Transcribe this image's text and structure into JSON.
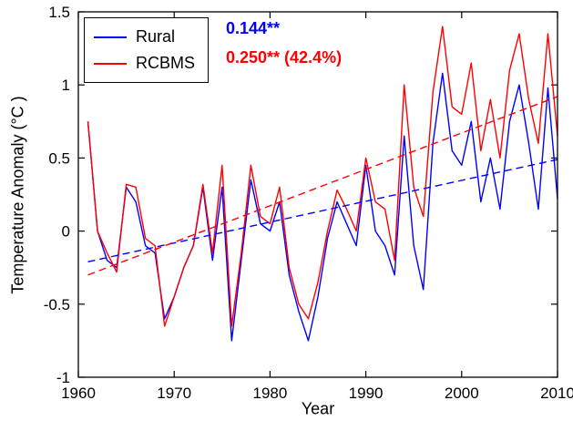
{
  "figure": {
    "background": "#ffffff",
    "xlabel": "Year",
    "ylabel": "Temperature Anomaly (°C )"
  },
  "legend": {
    "position": "top-left",
    "entries": [
      {
        "label": "Rural",
        "color": "#0000ff",
        "style": "solid"
      },
      {
        "label": "RCBMS",
        "color": "#ff0000",
        "style": "solid"
      }
    ]
  },
  "annotations": [
    {
      "text": "0.144**",
      "color": "#0000ff"
    },
    {
      "text": "0.250** (42.4%)",
      "color": "#ff0000"
    }
  ],
  "chart_data": {
    "type": "line",
    "title": "",
    "xlabel": "Year",
    "ylabel": "Temperature Anomaly (°C )",
    "xlim": [
      1960,
      2010
    ],
    "ylim": [
      -1,
      1.5
    ],
    "xticks": [
      1960,
      1970,
      1980,
      1990,
      2000,
      2010
    ],
    "yticks": [
      -1,
      -0.5,
      0,
      0.5,
      1,
      1.5
    ],
    "ytick_labels": [
      "-1",
      "-0.5",
      "0",
      "0.5",
      "1",
      "1.5"
    ],
    "grid": false,
    "legend_position": "top-left",
    "x": [
      1961,
      1962,
      1963,
      1964,
      1965,
      1966,
      1967,
      1968,
      1969,
      1970,
      1971,
      1972,
      1973,
      1974,
      1975,
      1976,
      1977,
      1978,
      1979,
      1980,
      1981,
      1982,
      1983,
      1984,
      1985,
      1986,
      1987,
      1988,
      1989,
      1990,
      1991,
      1992,
      1993,
      1994,
      1995,
      1996,
      1997,
      1998,
      1999,
      2000,
      2001,
      2002,
      2003,
      2004,
      2005,
      2006,
      2007,
      2008,
      2009,
      2010
    ],
    "series": [
      {
        "name": "Rural",
        "color": "#0000ff",
        "trend_label": "0.144**",
        "values": [
          0.75,
          0.0,
          -0.2,
          -0.25,
          0.3,
          0.2,
          -0.1,
          -0.15,
          -0.6,
          -0.45,
          -0.25,
          -0.1,
          0.3,
          -0.2,
          0.3,
          -0.75,
          -0.2,
          0.35,
          0.05,
          0.0,
          0.2,
          -0.3,
          -0.55,
          -0.75,
          -0.45,
          -0.05,
          0.2,
          0.05,
          -0.1,
          0.45,
          0.0,
          -0.1,
          -0.3,
          0.65,
          -0.1,
          -0.4,
          0.6,
          1.08,
          0.55,
          0.45,
          0.75,
          0.2,
          0.5,
          0.15,
          0.75,
          1.0,
          0.6,
          0.15,
          0.98,
          0.22
        ]
      },
      {
        "name": "RCBMS",
        "color": "#ff0000",
        "trend_label": "0.250** (42.4%)",
        "values": [
          0.75,
          0.0,
          -0.15,
          -0.28,
          0.32,
          0.3,
          -0.05,
          -0.1,
          -0.65,
          -0.45,
          -0.25,
          -0.1,
          0.32,
          -0.15,
          0.45,
          -0.65,
          -0.15,
          0.45,
          0.1,
          0.05,
          0.3,
          -0.25,
          -0.5,
          -0.6,
          -0.35,
          0.0,
          0.28,
          0.15,
          0.0,
          0.5,
          0.2,
          0.15,
          -0.2,
          1.0,
          0.3,
          0.1,
          0.95,
          1.4,
          0.85,
          0.8,
          1.15,
          0.55,
          0.9,
          0.5,
          1.1,
          1.35,
          0.9,
          0.6,
          1.35,
          0.65
        ]
      }
    ],
    "trend_lines": [
      {
        "name": "rural-trend",
        "color": "#0000ff",
        "x": [
          1961,
          2010
        ],
        "y": [
          -0.21,
          0.49
        ],
        "slope_per_decade": 0.144
      },
      {
        "name": "rcbms-trend",
        "color": "#ff0000",
        "x": [
          1961,
          2010
        ],
        "y": [
          -0.3,
          0.92
        ],
        "slope_per_decade": 0.25
      }
    ]
  }
}
